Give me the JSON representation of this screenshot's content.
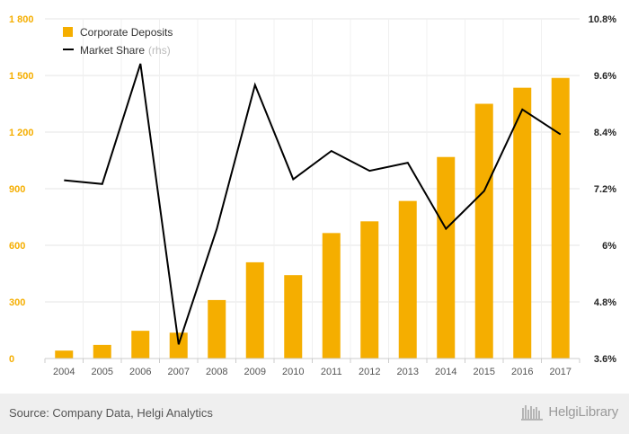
{
  "chart_data": {
    "type": "bar+line",
    "categories": [
      "2004",
      "2005",
      "2006",
      "2007",
      "2008",
      "2009",
      "2010",
      "2011",
      "2012",
      "2013",
      "2014",
      "2015",
      "2016",
      "2017"
    ],
    "series": [
      {
        "name": "Corporate Deposits",
        "type": "bar",
        "axis": "left",
        "color": "#F5AE00",
        "values": [
          42,
          72,
          147,
          137,
          310,
          510,
          442,
          665,
          727,
          835,
          1068,
          1350,
          1435,
          1487
        ]
      },
      {
        "name": "Market Share",
        "name_suffix": "(rhs)",
        "type": "line",
        "axis": "right",
        "color": "#000000",
        "values": [
          7.38,
          7.3,
          9.85,
          3.9,
          6.35,
          9.4,
          7.4,
          8.0,
          7.58,
          7.75,
          6.35,
          7.15,
          8.88,
          8.35
        ]
      }
    ],
    "y_left": {
      "ylim": [
        0,
        1800
      ],
      "ticks": [
        0,
        300,
        600,
        900,
        1200,
        1500,
        1800
      ],
      "tick_labels": [
        "0",
        "300",
        "600",
        "900",
        "1 200",
        "1 500",
        "1 800"
      ],
      "tick_color": "#F5AE00"
    },
    "y_right": {
      "ylim": [
        3.6,
        10.8
      ],
      "ticks": [
        3.6,
        4.8,
        6.0,
        7.2,
        8.4,
        9.6,
        10.8
      ],
      "tick_labels": [
        "3.6%",
        "4.8%",
        "6%",
        "7.2%",
        "8.4%",
        "9.6%",
        "10.8%"
      ]
    },
    "grid": true,
    "legend_position": "top-left"
  },
  "footer": {
    "source": "Source: Company Data, Helgi Analytics",
    "logo_text": "HelgiLibrary"
  }
}
